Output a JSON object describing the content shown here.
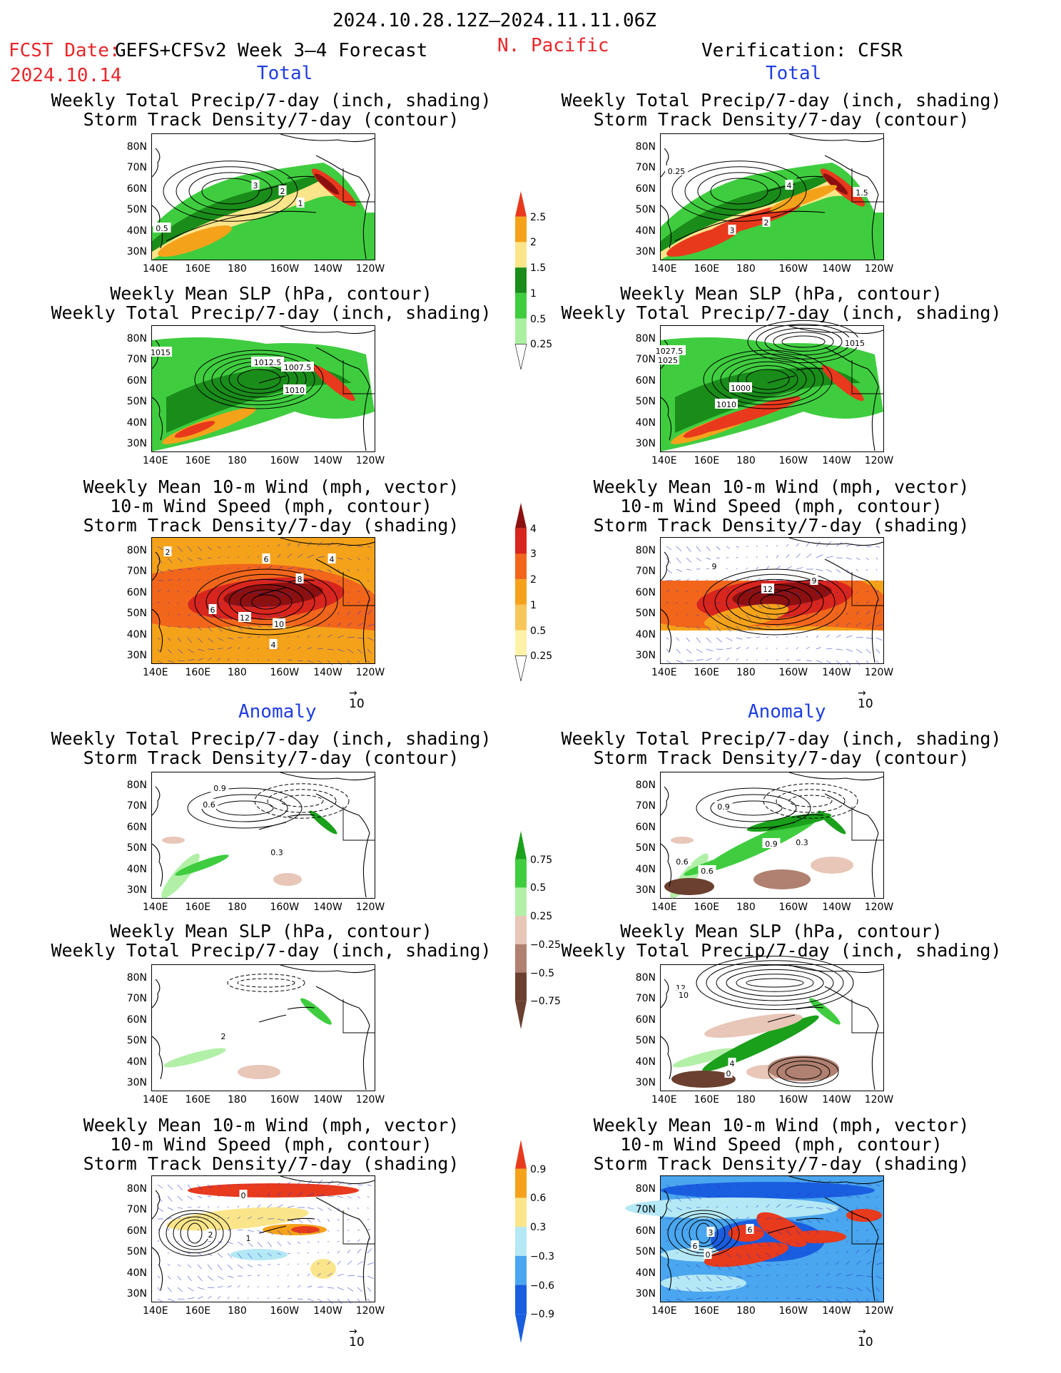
{
  "header": {
    "period": "2024.10.28.12Z–2024.11.11.06Z",
    "fcst_date_label": "FCST Date:",
    "fcst_date": "2024.10.14",
    "model_title": "GEFS+CFSv2 Week 3–4 Forecast",
    "region": "N. Pacific",
    "verification": "Verification: CFSR"
  },
  "sections": {
    "total_left": "Total",
    "total_right": "Total",
    "anomaly_left": "Anomaly",
    "anomaly_right": "Anomaly"
  },
  "panel_titles": {
    "precip_storm": [
      "Weekly Total Precip/7-day (inch, shading)",
      "Storm Track Density/7-day (contour)"
    ],
    "slp_precip": [
      "Weekly Mean SLP (hPa, contour)",
      "Weekly Total Precip/7-day (inch, shading)"
    ],
    "wind_storm": [
      "Weekly Mean 10-m Wind (mph, vector)",
      "10-m Wind Speed (mph, contour)",
      "Storm Track Density/7-day (shading)"
    ]
  },
  "axes": {
    "lat_labels": [
      "80N",
      "70N",
      "60N",
      "50N",
      "40N",
      "30N"
    ],
    "lon_labels": [
      "140E",
      "160E",
      "180",
      "160W",
      "140W",
      "120W"
    ]
  },
  "vector_reference": "10",
  "colorbars": {
    "precip_total": {
      "labels": [
        "2.5",
        "2",
        "1.5",
        "1",
        "0.5",
        "0.25"
      ],
      "colors": [
        "#e8391d",
        "#f5a21b",
        "#fbe58a",
        "#1a8c1a",
        "#3fcd3f",
        "#aaf0a0"
      ]
    },
    "storm_total": {
      "labels": [
        "4",
        "3",
        "2",
        "1",
        "0.5",
        "0.25"
      ],
      "colors": [
        "#8c1010",
        "#d8251d",
        "#f2661b",
        "#f5a21b",
        "#f7c65a",
        "#fdf2a8"
      ]
    },
    "precip_anom": {
      "labels": [
        "0.75",
        "0.5",
        "0.25",
        "−0.25",
        "−0.5",
        "−0.75"
      ],
      "colors": [
        "#1aa01a",
        "#3fcd3f",
        "#b2f0a8",
        "#e8c6b8",
        "#b08070",
        "#6b4030"
      ]
    },
    "storm_anom": {
      "labels": [
        "0.9",
        "0.6",
        "0.3",
        "−0.3",
        "−0.6",
        "−0.9"
      ],
      "colors": [
        "#e83a1d",
        "#f5a21b",
        "#fbe58a",
        "#b4e8f5",
        "#4aa6ee",
        "#1a5ee0"
      ]
    }
  },
  "panels": [
    {
      "id": "fc-precip-storm",
      "contour_labels": [
        "3",
        "2",
        "1",
        "0.5"
      ]
    },
    {
      "id": "obs-precip-storm",
      "contour_labels": [
        "0.25",
        "4",
        "1.5",
        "3",
        "2"
      ]
    },
    {
      "id": "fc-slp-precip",
      "contour_labels": [
        "1015",
        "1012.5",
        "1007.5",
        "1010"
      ]
    },
    {
      "id": "obs-slp-precip",
      "contour_labels": [
        "1027.5",
        "1025",
        "1015",
        "1000",
        "1010"
      ]
    },
    {
      "id": "fc-wind-storm",
      "contour_labels": [
        "2",
        "6",
        "4",
        "8",
        "6",
        "12",
        "10",
        "4"
      ]
    },
    {
      "id": "obs-wind-storm",
      "contour_labels": [
        "9",
        "12",
        "9"
      ]
    },
    {
      "id": "fc-precip-storm-anom",
      "contour_labels": [
        "0.9",
        "0.6",
        "0.3"
      ]
    },
    {
      "id": "obs-precip-storm-anom",
      "contour_labels": [
        "0.9",
        "0.9",
        "0.3",
        "0.6",
        "0.6"
      ]
    },
    {
      "id": "fc-slp-precip-anom",
      "contour_labels": [
        "2"
      ]
    },
    {
      "id": "obs-slp-precip-anom",
      "contour_labels": [
        "12",
        "10",
        "4",
        "0"
      ]
    },
    {
      "id": "fc-wind-storm-anom",
      "contour_labels": [
        "0",
        "2",
        "1"
      ]
    },
    {
      "id": "obs-wind-storm-anom",
      "contour_labels": [
        "3",
        "6",
        "6",
        "0"
      ]
    }
  ]
}
